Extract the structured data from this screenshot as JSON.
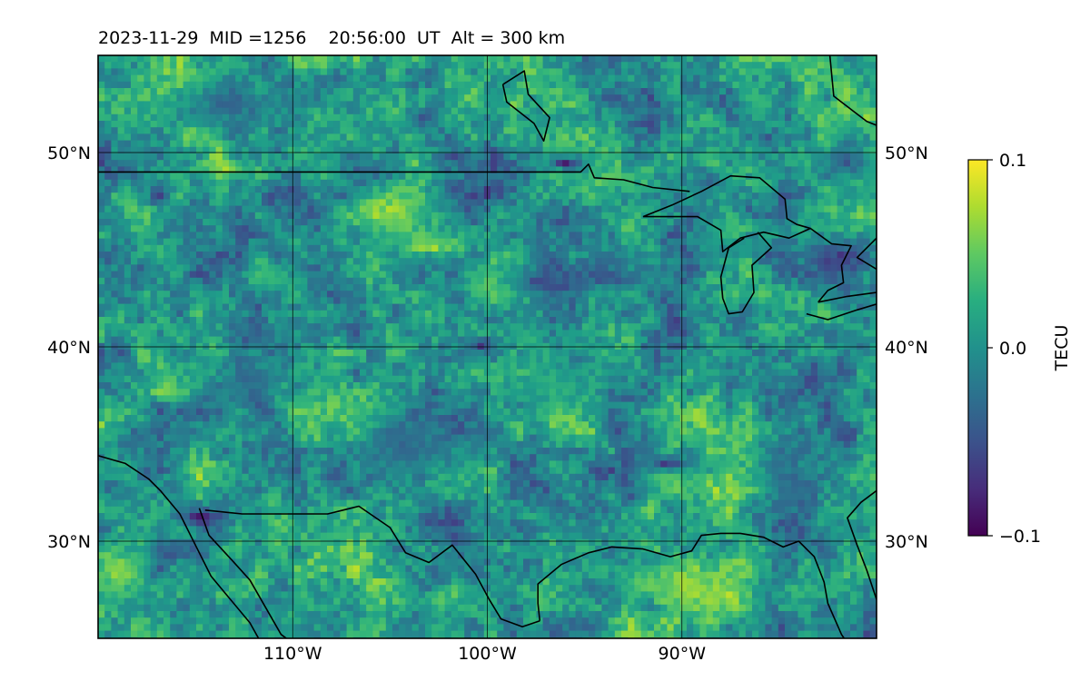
{
  "chart_data": {
    "type": "heatmap",
    "title": "2023-11-29  MID =1256    20:56:00  UT  Alt = 300 km",
    "x_range": [
      -120,
      -80
    ],
    "y_range": [
      25,
      55
    ],
    "x_ticks": [
      {
        "value": -110,
        "label": "110°W"
      },
      {
        "value": -100,
        "label": "100°W"
      },
      {
        "value": -90,
        "label": "90°W"
      }
    ],
    "y_ticks": [
      {
        "value": 50,
        "label": "50°N"
      },
      {
        "value": 40,
        "label": "40°N"
      },
      {
        "value": 30,
        "label": "30°N"
      }
    ],
    "grid": true,
    "colorbar": {
      "label": "TECU",
      "min": -0.1,
      "max": 0.1,
      "colormap": "viridis",
      "ticks": [
        {
          "value": 0.1,
          "label": "0.1"
        },
        {
          "value": 0.0,
          "label": "0.0"
        },
        {
          "value": -0.1,
          "label": "−0.1"
        }
      ]
    },
    "hotspots": [
      {
        "lon": -105.2,
        "lat": 46.9,
        "value": 0.08,
        "lon_extent": 4.5,
        "lat_extent": 2.6
      },
      {
        "lon": -102.8,
        "lat": 45.2,
        "value": 0.08,
        "lon_extent": 4.0,
        "lat_extent": 1.6
      },
      {
        "lon": -113.5,
        "lat": 49.2,
        "value": 0.08,
        "lon_extent": 2.5,
        "lat_extent": 0.9
      },
      {
        "lon": -119.0,
        "lat": 28.4,
        "value": 0.07,
        "lon_extent": 2.5,
        "lat_extent": 2.4
      },
      {
        "lon": -88.5,
        "lat": 27.2,
        "value": 0.09,
        "lon_extent": 4.5,
        "lat_extent": 2.2
      },
      {
        "lon": -92.0,
        "lat": 28.0,
        "value": 0.06,
        "lon_extent": 4.0,
        "lat_extent": 1.6
      },
      {
        "lon": -102.3,
        "lat": 27.0,
        "value": 0.07,
        "lon_extent": 1.5,
        "lat_extent": 1.0
      },
      {
        "lon": -90.8,
        "lat": 33.5,
        "value": 0.06,
        "lon_extent": 3.0,
        "lat_extent": 2.0
      },
      {
        "lon": -94.2,
        "lat": 48.6,
        "value": 0.06,
        "lon_extent": 3.0,
        "lat_extent": 1.2
      },
      {
        "lon": -100.0,
        "lat": 43.0,
        "value": 0.05,
        "lon_extent": 2.0,
        "lat_extent": 1.6
      },
      {
        "lon": -87.0,
        "lat": 46.2,
        "value": 0.05,
        "lon_extent": 3.0,
        "lat_extent": 1.0
      },
      {
        "lon": -110.5,
        "lat": 43.4,
        "value": 0.04,
        "lon_extent": 3.0,
        "lat_extent": 1.6
      },
      {
        "lon": -115.5,
        "lat": 30.5,
        "value": 0.05,
        "lon_extent": 2.0,
        "lat_extent": 1.0
      },
      {
        "lon": -96.5,
        "lat": 38.0,
        "value": 0.04,
        "lon_extent": 3.0,
        "lat_extent": 3.0
      },
      {
        "lon": -84.0,
        "lat": 27.5,
        "value": 0.05,
        "lon_extent": 2.0,
        "lat_extent": 1.4
      },
      {
        "lon": -114.8,
        "lat": 31.2,
        "value": -0.09,
        "lon_extent": 1.6,
        "lat_extent": 1.0
      },
      {
        "lon": -90.7,
        "lat": 34.0,
        "value": -0.09,
        "lon_extent": 2.0,
        "lat_extent": 0.9
      },
      {
        "lon": -96.0,
        "lat": 49.5,
        "value": -0.09,
        "lon_extent": 2.0,
        "lat_extent": 0.8
      },
      {
        "lon": -82.0,
        "lat": 44.5,
        "value": -0.08,
        "lon_extent": 3.0,
        "lat_extent": 2.0
      },
      {
        "lon": -117.0,
        "lat": 47.8,
        "value": -0.08,
        "lon_extent": 1.0,
        "lat_extent": 1.0
      },
      {
        "lon": -100.3,
        "lat": 40.0,
        "value": -0.08,
        "lon_extent": 1.5,
        "lat_extent": 0.8
      },
      {
        "lon": -93.5,
        "lat": 43.6,
        "value": -0.06,
        "lon_extent": 4.0,
        "lat_extent": 2.0
      },
      {
        "lon": -97.5,
        "lat": 43.5,
        "value": -0.06,
        "lon_extent": 2.0,
        "lat_extent": 1.6
      },
      {
        "lon": -81.5,
        "lat": 49.5,
        "value": -0.05,
        "lon_extent": 3.0,
        "lat_extent": 2.0
      },
      {
        "lon": -116.0,
        "lat": 29.5,
        "value": -0.05,
        "lon_extent": 3.0,
        "lat_extent": 1.2
      },
      {
        "lon": -112.5,
        "lat": 38.5,
        "value": -0.04,
        "lon_extent": 4.0,
        "lat_extent": 3.0
      },
      {
        "lon": -84.5,
        "lat": 33.0,
        "value": -0.04,
        "lon_extent": 3.0,
        "lat_extent": 3.0
      },
      {
        "lon": -113.0,
        "lat": 52.5,
        "value": -0.04,
        "lon_extent": 6.0,
        "lat_extent": 2.0
      },
      {
        "lon": -104.0,
        "lat": 35.0,
        "value": -0.03,
        "lon_extent": 5.0,
        "lat_extent": 3.0
      }
    ],
    "coastlines": [
      [
        [
          -120,
          34.4
        ],
        [
          -118.6,
          34.0
        ],
        [
          -117.4,
          33.2
        ],
        [
          -116.8,
          32.6
        ],
        [
          -115.8,
          31.4
        ],
        [
          -115.2,
          30.2
        ],
        [
          -114.2,
          28.2
        ],
        [
          -113.2,
          27.0
        ],
        [
          -112.2,
          25.8
        ],
        [
          -111.7,
          24.9
        ]
      ],
      [
        [
          -114.8,
          31.7
        ],
        [
          -114.3,
          30.3
        ],
        [
          -113.1,
          29.0
        ],
        [
          -112.2,
          28.0
        ],
        [
          -111.4,
          26.6
        ],
        [
          -110.6,
          25.2
        ],
        [
          -110.2,
          24.9
        ]
      ],
      [
        [
          -114.5,
          31.6
        ],
        [
          -112.6,
          31.4
        ],
        [
          -111.0,
          31.4
        ],
        [
          -108.2,
          31.4
        ],
        [
          -106.6,
          31.8
        ],
        [
          -105.0,
          30.7
        ],
        [
          -104.2,
          29.4
        ],
        [
          -103.0,
          28.9
        ],
        [
          -101.8,
          29.8
        ],
        [
          -100.6,
          28.3
        ],
        [
          -99.9,
          27.0
        ],
        [
          -99.3,
          26.0
        ],
        [
          -98.2,
          25.6
        ],
        [
          -97.3,
          25.9
        ]
      ],
      [
        [
          -97.3,
          25.9
        ],
        [
          -97.4,
          26.8
        ],
        [
          -97.4,
          27.8
        ],
        [
          -96.2,
          28.8
        ],
        [
          -94.8,
          29.4
        ],
        [
          -93.6,
          29.7
        ],
        [
          -92.0,
          29.6
        ],
        [
          -90.6,
          29.2
        ],
        [
          -89.5,
          29.5
        ],
        [
          -89.0,
          30.3
        ],
        [
          -88.0,
          30.4
        ],
        [
          -87.0,
          30.4
        ],
        [
          -85.8,
          30.2
        ],
        [
          -84.8,
          29.7
        ],
        [
          -84.0,
          30.0
        ],
        [
          -83.2,
          29.2
        ],
        [
          -82.7,
          27.9
        ],
        [
          -82.5,
          26.8
        ],
        [
          -81.8,
          25.2
        ],
        [
          -81.6,
          24.9
        ]
      ],
      [
        [
          -80.0,
          27.0
        ],
        [
          -80.5,
          28.5
        ],
        [
          -81.0,
          29.8
        ],
        [
          -81.5,
          31.2
        ],
        [
          -80.8,
          32.0
        ],
        [
          -80.0,
          32.6
        ]
      ],
      [
        [
          -120,
          49.0
        ],
        [
          -115,
          49.0
        ],
        [
          -110,
          49.0
        ],
        [
          -105,
          49.0
        ],
        [
          -100,
          49.0
        ],
        [
          -95.2,
          49.0
        ],
        [
          -94.8,
          49.4
        ],
        [
          -94.5,
          48.7
        ],
        [
          -93.0,
          48.6
        ],
        [
          -91.5,
          48.2
        ],
        [
          -89.6,
          48.0
        ]
      ],
      [
        [
          -92.0,
          46.7
        ],
        [
          -90.5,
          47.3
        ],
        [
          -89.0,
          48.0
        ],
        [
          -87.5,
          48.8
        ],
        [
          -86.0,
          48.7
        ],
        [
          -84.7,
          47.6
        ],
        [
          -84.6,
          46.6
        ],
        [
          -84.1,
          46.3
        ],
        [
          -83.4,
          46.1
        ],
        [
          -84.5,
          45.6
        ],
        [
          -85.8,
          45.9
        ],
        [
          -87.0,
          45.6
        ],
        [
          -87.9,
          44.9
        ],
        [
          -88.0,
          46.0
        ],
        [
          -89.2,
          46.7
        ],
        [
          -91.3,
          46.7
        ],
        [
          -92.0,
          46.7
        ]
      ],
      [
        [
          -87.9,
          42.5
        ],
        [
          -87.6,
          41.7
        ],
        [
          -86.9,
          41.8
        ],
        [
          -86.3,
          42.8
        ],
        [
          -86.4,
          44.2
        ],
        [
          -85.4,
          45.1
        ],
        [
          -86.1,
          45.9
        ]
      ],
      [
        [
          -87.9,
          42.5
        ],
        [
          -88.0,
          43.6
        ],
        [
          -87.6,
          45.1
        ],
        [
          -86.8,
          45.6
        ]
      ],
      [
        [
          -83.4,
          46.1
        ],
        [
          -82.3,
          45.3
        ],
        [
          -81.3,
          45.2
        ],
        [
          -81.8,
          44.2
        ],
        [
          -81.7,
          43.3
        ],
        [
          -82.5,
          42.9
        ],
        [
          -83.0,
          42.3
        ]
      ],
      [
        [
          -83.0,
          42.3
        ],
        [
          -81.5,
          42.6
        ],
        [
          -80.0,
          42.8
        ]
      ],
      [
        [
          -83.6,
          41.7
        ],
        [
          -82.5,
          41.4
        ],
        [
          -81.0,
          41.9
        ],
        [
          -80.0,
          42.2
        ]
      ],
      [
        [
          -80.0,
          44.0
        ],
        [
          -81.0,
          44.6
        ],
        [
          -80.0,
          45.6
        ]
      ],
      [
        [
          -99.2,
          53.5
        ],
        [
          -98.1,
          54.2
        ],
        [
          -97.9,
          53.0
        ],
        [
          -96.8,
          51.8
        ],
        [
          -97.1,
          50.6
        ],
        [
          -97.6,
          51.5
        ],
        [
          -99.0,
          52.6
        ],
        [
          -99.2,
          53.5
        ]
      ],
      [
        [
          -82.4,
          55.0
        ],
        [
          -82.2,
          52.9
        ],
        [
          -80.5,
          51.6
        ],
        [
          -80.0,
          51.4
        ]
      ]
    ]
  }
}
